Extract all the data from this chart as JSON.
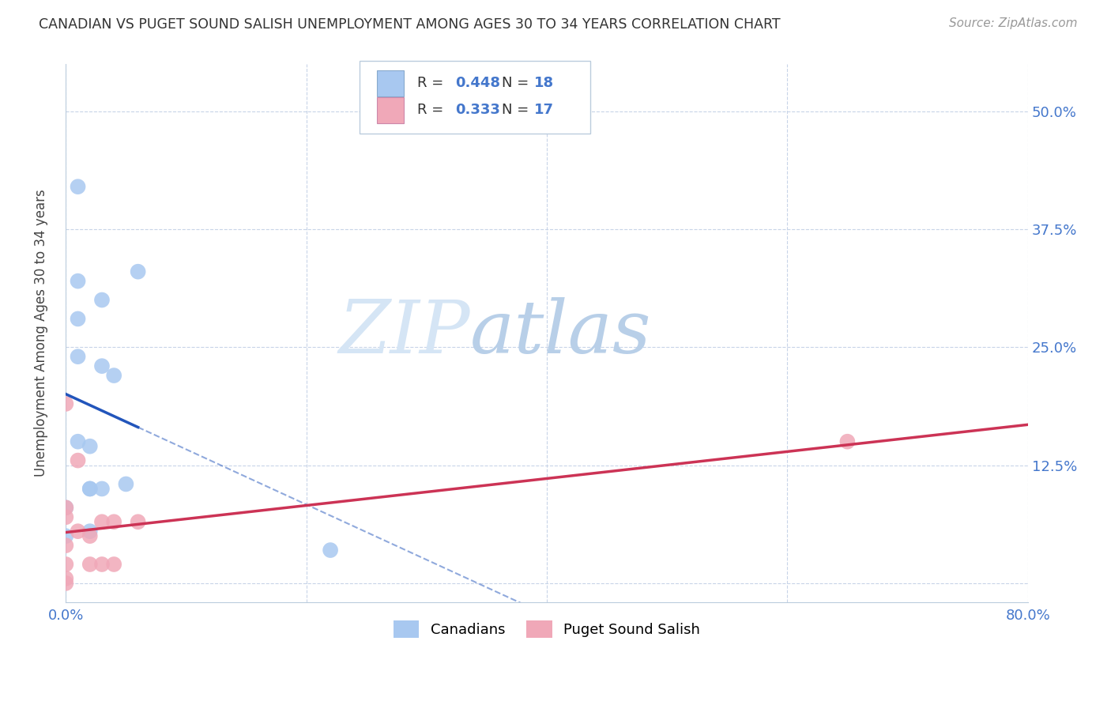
{
  "title": "CANADIAN VS PUGET SOUND SALISH UNEMPLOYMENT AMONG AGES 30 TO 34 YEARS CORRELATION CHART",
  "source": "Source: ZipAtlas.com",
  "ylabel": "Unemployment Among Ages 30 to 34 years",
  "xlim": [
    0.0,
    0.8
  ],
  "ylim": [
    -0.02,
    0.55
  ],
  "x_ticks": [
    0.0,
    0.2,
    0.4,
    0.6,
    0.8
  ],
  "y_ticks": [
    0.0,
    0.125,
    0.25,
    0.375,
    0.5
  ],
  "canadian_R": 0.448,
  "canadian_N": 18,
  "puget_R": 0.333,
  "puget_N": 17,
  "canadians_x": [
    0.0,
    0.0,
    0.01,
    0.01,
    0.01,
    0.01,
    0.01,
    0.02,
    0.02,
    0.02,
    0.02,
    0.03,
    0.03,
    0.03,
    0.04,
    0.05,
    0.06,
    0.22
  ],
  "canadians_y": [
    0.05,
    0.08,
    0.42,
    0.32,
    0.28,
    0.24,
    0.15,
    0.145,
    0.1,
    0.1,
    0.055,
    0.3,
    0.23,
    0.1,
    0.22,
    0.105,
    0.33,
    0.035
  ],
  "puget_x": [
    0.0,
    0.0,
    0.0,
    0.0,
    0.0,
    0.0,
    0.0,
    0.01,
    0.01,
    0.02,
    0.02,
    0.03,
    0.03,
    0.04,
    0.04,
    0.06,
    0.65
  ],
  "puget_y": [
    0.0,
    0.005,
    0.02,
    0.04,
    0.07,
    0.08,
    0.19,
    0.055,
    0.13,
    0.02,
    0.05,
    0.02,
    0.065,
    0.02,
    0.065,
    0.065,
    0.15
  ],
  "canadian_color": "#a8c8f0",
  "canadian_line_color": "#2255bb",
  "puget_color": "#f0a8b8",
  "puget_line_color": "#cc3355",
  "watermark_color": "#d0e0f5",
  "background_color": "#ffffff",
  "grid_color": "#c8d4e8"
}
